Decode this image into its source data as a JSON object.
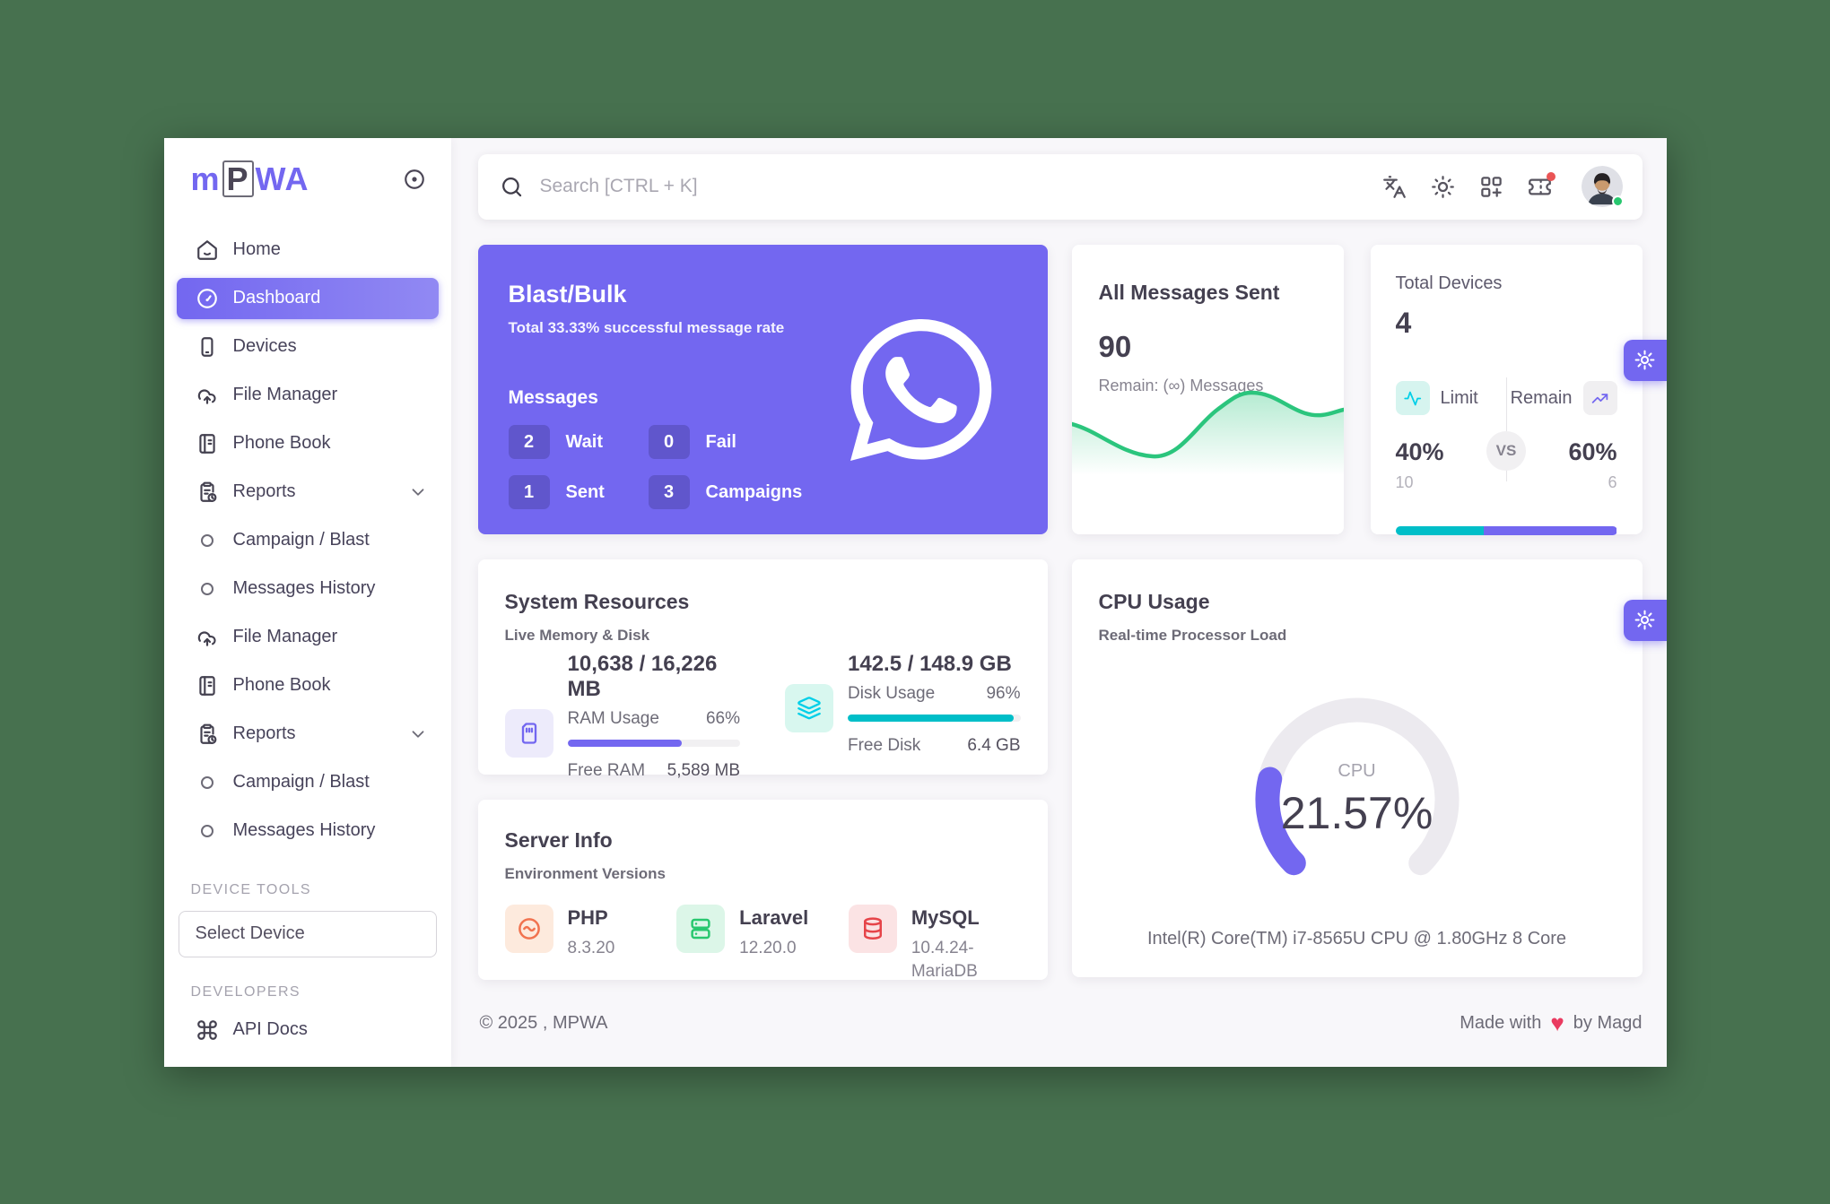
{
  "sidebar": {
    "logo": {
      "m": "m",
      "p": "P",
      "wa": "WA",
      "full": "MPWA"
    },
    "items": [
      {
        "label": "Home"
      },
      {
        "label": "Dashboard",
        "active": true
      },
      {
        "label": "Devices"
      },
      {
        "label": "File Manager"
      },
      {
        "label": "Phone Book"
      },
      {
        "label": "Reports"
      },
      {
        "label": "Campaign / Blast"
      },
      {
        "label": "Messages History"
      },
      {
        "label": "File Manager"
      },
      {
        "label": "Phone Book"
      },
      {
        "label": "Reports"
      },
      {
        "label": "Campaign / Blast"
      },
      {
        "label": "Messages History"
      },
      {
        "label": "API Docs"
      }
    ],
    "sections": [
      "DEVICE TOOLS",
      "DEVELOPERS"
    ],
    "select_device_placeholder": "Select Device"
  },
  "topbar": {
    "search_placeholder": "Search [CTRL + K]",
    "icons": [
      "translate-icon",
      "sun-icon",
      "apps-grid-icon",
      "ticket-icon",
      "avatar"
    ]
  },
  "cards": {
    "blast": {
      "title": "Blast/Bulk",
      "subtitle": "Total 33.33% successful message rate",
      "messages_label": "Messages",
      "stats": [
        {
          "value": "2",
          "label": "Wait"
        },
        {
          "value": "0",
          "label": "Fail"
        },
        {
          "value": "1",
          "label": "Sent"
        },
        {
          "value": "3",
          "label": "Campaigns"
        }
      ]
    },
    "messages_sent": {
      "title": "All Messages Sent",
      "value": "90",
      "remain": "Remain: (∞) Messages",
      "chart_color": "#2bc57d"
    },
    "devices": {
      "title": "Total Devices",
      "value": "4",
      "limit_label": "Limit",
      "remain_label": "Remain",
      "vs": "VS",
      "limit_pct": "40%",
      "remain_pct": "60%",
      "limit_pct_num": 40,
      "remain_pct_num": 60,
      "limit_count": "10",
      "remain_count": "6",
      "bar_colors": {
        "limit": "#00bec8",
        "remain": "#7367f0"
      }
    },
    "system": {
      "title": "System Resources",
      "subtitle": "Live Memory & Disk",
      "ram": {
        "value": "10,638 / 16,226 MB",
        "label": "RAM Usage",
        "pct": "66%",
        "pct_num": 66,
        "free_label": "Free RAM",
        "free_value": "5,589 MB"
      },
      "disk": {
        "value": "142.5 / 148.9 GB",
        "label": "Disk Usage",
        "pct": "96%",
        "pct_num": 96,
        "free_label": "Free Disk",
        "free_value": "6.4 GB"
      }
    },
    "cpu": {
      "title": "CPU Usage",
      "subtitle": "Real-time Processor Load",
      "gauge_label": "CPU",
      "gauge_value": "21.57%",
      "gauge_pct_num": 21.57,
      "gauge_color": "#7367f0",
      "cpu_name": "Intel(R) Core(TM) i7-8565U CPU @ 1.80GHz 8 Core"
    },
    "server": {
      "title": "Server Info",
      "subtitle": "Environment Versions",
      "items": [
        {
          "name": "PHP",
          "version": "8.3.20"
        },
        {
          "name": "Laravel",
          "version": "12.20.0"
        },
        {
          "name": "MySQL",
          "version": "10.4.24-MariaDB"
        }
      ]
    }
  },
  "footer": {
    "left": "© 2025 , MPWA",
    "made_with": "Made with",
    "heart": "♥",
    "by": "by Magd"
  },
  "colors": {
    "primary": "#7367f0",
    "success": "#28c76f",
    "info": "#00cfe8",
    "danger": "#ea5455",
    "background": "#47714f"
  }
}
